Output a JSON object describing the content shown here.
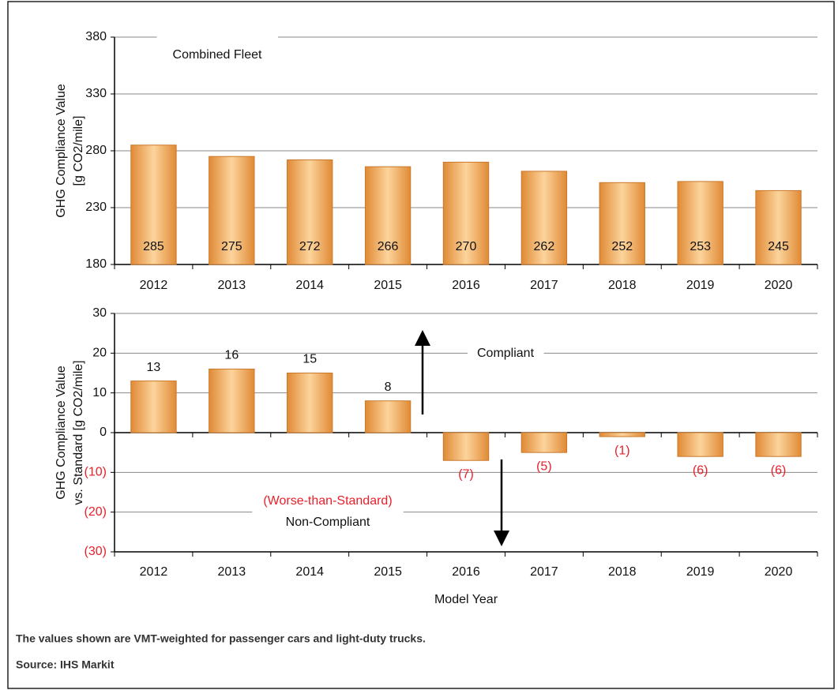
{
  "chart_data": [
    {
      "type": "bar",
      "annotation": "Combined Fleet",
      "ylabel": [
        "GHG Compliance Value",
        "[g CO2/mile]"
      ],
      "categories": [
        "2012",
        "2013",
        "2014",
        "2015",
        "2016",
        "2017",
        "2018",
        "2019",
        "2020"
      ],
      "values": [
        285,
        275,
        272,
        266,
        270,
        262,
        252,
        253,
        245
      ],
      "ylim": [
        180,
        380
      ],
      "yticks": [
        180,
        230,
        280,
        330,
        380
      ],
      "grid": true,
      "color": "#f0a050",
      "label_position": "inside-base"
    },
    {
      "type": "bar",
      "ylabel": [
        "GHG Compliance Value",
        "vs. Standard [g CO2/mile]"
      ],
      "xlabel": "Model Year",
      "annotations": [
        {
          "text": "Compliant"
        },
        {
          "text": "(Worse-than-Standard)",
          "color": "#e8202a"
        },
        {
          "text": "Non-Compliant"
        }
      ],
      "categories": [
        "2012",
        "2013",
        "2014",
        "2015",
        "2016",
        "2017",
        "2018",
        "2019",
        "2020"
      ],
      "values": [
        13,
        16,
        15,
        8,
        -7,
        -5,
        -1,
        -6,
        -6
      ],
      "value_labels": [
        "13",
        "16",
        "15",
        "8",
        "(7)",
        "(5)",
        "(1)",
        "(6)",
        "(6)"
      ],
      "ylim": [
        -30,
        30
      ],
      "yticks": [
        {
          "value": -30,
          "label": "(30)"
        },
        {
          "value": -20,
          "label": "(20)"
        },
        {
          "value": -10,
          "label": "(10)"
        },
        0,
        10,
        20,
        30
      ],
      "grid": true,
      "color": "#f0a050",
      "negative_color": "#e8202a",
      "label_position": "outside"
    }
  ],
  "footnote": "The values shown are VMT-weighted for passenger cars and light-duty trucks.",
  "source": "Source: IHS Markit"
}
